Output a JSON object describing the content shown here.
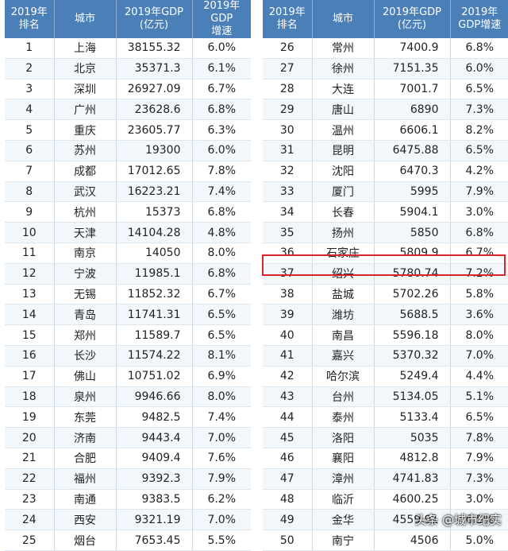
{
  "headers": [
    "2019年\n排名",
    "城市",
    "2019年GDP\n(亿元)",
    "2019年GDP\n增速"
  ],
  "headers_right": [
    "2019年\n排名",
    "城市",
    "2019年GDP\n(亿元)",
    "2019年\nGDP增速"
  ],
  "left_rows": [
    [
      "1",
      "上海",
      "38155.32",
      "6.0%"
    ],
    [
      "2",
      "北京",
      "35371.3",
      "6.1%"
    ],
    [
      "3",
      "深圳",
      "26927.09",
      "6.7%"
    ],
    [
      "4",
      "广州",
      "23628.6",
      "6.8%"
    ],
    [
      "5",
      "重庆",
      "23605.77",
      "6.3%"
    ],
    [
      "6",
      "苏州",
      "19300",
      "6.0%"
    ],
    [
      "7",
      "成都",
      "17012.65",
      "7.8%"
    ],
    [
      "8",
      "武汉",
      "16223.21",
      "7.4%"
    ],
    [
      "9",
      "杭州",
      "15373",
      "6.8%"
    ],
    [
      "10",
      "天津",
      "14104.28",
      "4.8%"
    ],
    [
      "11",
      "南京",
      "14050",
      "8.0%"
    ],
    [
      "12",
      "宁波",
      "11985.1",
      "6.8%"
    ],
    [
      "13",
      "无锡",
      "11852.32",
      "6.7%"
    ],
    [
      "14",
      "青岛",
      "11741.31",
      "6.5%"
    ],
    [
      "15",
      "郑州",
      "11589.7",
      "6.5%"
    ],
    [
      "16",
      "长沙",
      "11574.22",
      "8.1%"
    ],
    [
      "17",
      "佛山",
      "10751.02",
      "6.9%"
    ],
    [
      "18",
      "泉州",
      "9946.66",
      "8.0%"
    ],
    [
      "19",
      "东莞",
      "9482.5",
      "7.4%"
    ],
    [
      "20",
      "济南",
      "9443.4",
      "7.0%"
    ],
    [
      "21",
      "合肥",
      "9409.4",
      "7.6%"
    ],
    [
      "22",
      "福州",
      "9392.3",
      "7.9%"
    ],
    [
      "23",
      "南通",
      "9383.5",
      "6.2%"
    ],
    [
      "24",
      "西安",
      "9321.19",
      "7.0%"
    ],
    [
      "25",
      "烟台",
      "7653.45",
      "5.5%"
    ]
  ],
  "right_rows": [
    [
      "26",
      "常州",
      "7400.9",
      "6.8%"
    ],
    [
      "27",
      "徐州",
      "7151.35",
      "6.0%"
    ],
    [
      "28",
      "大连",
      "7001.7",
      "6.5%"
    ],
    [
      "29",
      "唐山",
      "6890",
      "7.3%"
    ],
    [
      "30",
      "温州",
      "6606.1",
      "8.2%"
    ],
    [
      "31",
      "昆明",
      "6475.88",
      "6.5%"
    ],
    [
      "32",
      "沈阳",
      "6470.3",
      "4.2%"
    ],
    [
      "33",
      "厦门",
      "5995",
      "7.9%"
    ],
    [
      "34",
      "长春",
      "5904.1",
      "3.0%"
    ],
    [
      "35",
      "扬州",
      "5850",
      "6.8%"
    ],
    [
      "36",
      "石家庄",
      "5809.9",
      "6.7%"
    ],
    [
      "37",
      "绍兴",
      "5780.74",
      "7.2%"
    ],
    [
      "38",
      "盐城",
      "5702.26",
      "5.8%"
    ],
    [
      "39",
      "潍坊",
      "5688.5",
      "3.6%"
    ],
    [
      "40",
      "南昌",
      "5596.18",
      "8.0%"
    ],
    [
      "41",
      "嘉兴",
      "5370.32",
      "7.0%"
    ],
    [
      "42",
      "哈尔滨",
      "5249.4",
      "4.4%"
    ],
    [
      "43",
      "台州",
      "5134.05",
      "5.1%"
    ],
    [
      "44",
      "泰州",
      "5133.4",
      "6.5%"
    ],
    [
      "45",
      "洛阳",
      "5035",
      "7.8%"
    ],
    [
      "46",
      "襄阳",
      "4812.8",
      "7.9%"
    ],
    [
      "47",
      "漳州",
      "4741.83",
      "7.3%"
    ],
    [
      "48",
      "临沂",
      "4600.25",
      "3.0%"
    ],
    [
      "49",
      "金华",
      "4559.91",
      "6.5%"
    ],
    [
      "50",
      "南宁",
      "4506",
      "5.0%"
    ]
  ],
  "highlight_rank": "37",
  "watermark": "头条 @城市纪实",
  "colors": {
    "header_bg": "#4a7fb8",
    "header_text": "#ffffff",
    "row_alt_bg": "#f2f7fc",
    "highlight": "#d9262c"
  }
}
